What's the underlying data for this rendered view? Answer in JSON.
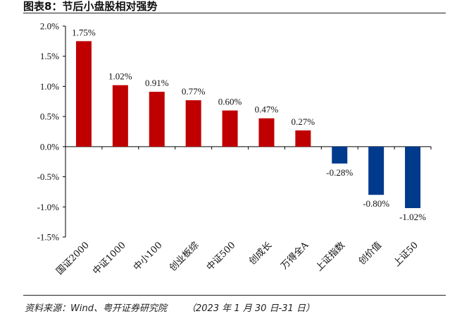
{
  "figure": {
    "title": "图表8：节后小盘股相对强势",
    "source": "资料来源：Wind、粤开证券研究院",
    "date": "（2023 年 1 月 30 日-31 日）"
  },
  "colors": {
    "positive": "#c00000",
    "negative": "#003a8c",
    "axis": "#000000"
  },
  "chart_data": {
    "type": "bar",
    "categories": [
      "国证2000",
      "中证1000",
      "中小100",
      "创业板综",
      "中证500",
      "创成长",
      "万得全A",
      "上证指数",
      "创价值",
      "上证50"
    ],
    "values": [
      1.75,
      1.02,
      0.91,
      0.77,
      0.6,
      0.47,
      0.27,
      -0.28,
      -0.8,
      -1.02
    ],
    "data_labels": [
      "1.75%",
      "1.02%",
      "0.91%",
      "0.77%",
      "0.60%",
      "0.47%",
      "0.27%",
      "-0.28%",
      "-0.80%",
      "-1.02%"
    ],
    "y_ticks": [
      2.0,
      1.5,
      1.0,
      0.5,
      0.0,
      -0.5,
      -1.0,
      -1.5
    ],
    "y_tick_labels": [
      "2.0%",
      "1.5%",
      "1.0%",
      "0.5%",
      "0.0%",
      "-0.5%",
      "-1.0%",
      "-1.5%"
    ],
    "ylim": [
      -1.5,
      2.0
    ],
    "grid": false,
    "legend": "none",
    "title": "",
    "xlabel": "",
    "ylabel": ""
  }
}
